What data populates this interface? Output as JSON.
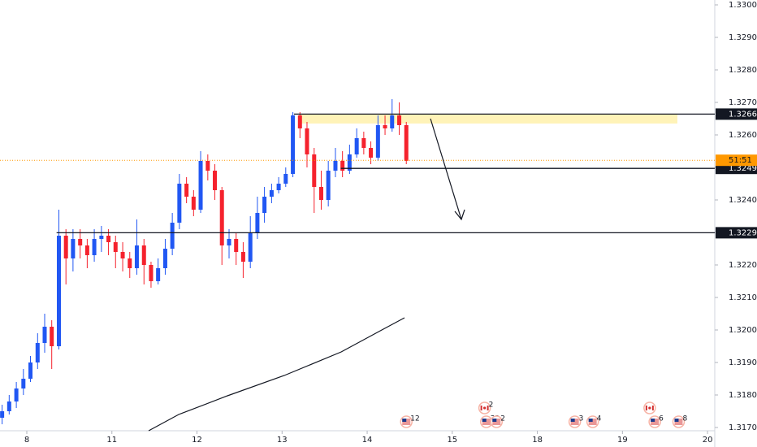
{
  "chart_data": {
    "type": "candlestick",
    "up_color": "#2157f3",
    "down_color": "#f5222d",
    "grid": false,
    "xlim": [
      -0.315,
      8.085
    ],
    "xticks": [
      {
        "value": 0,
        "label": "8"
      },
      {
        "value": 1,
        "label": "11"
      },
      {
        "value": 2,
        "label": "12"
      },
      {
        "value": 3,
        "label": "13"
      },
      {
        "value": 4,
        "label": "14"
      },
      {
        "value": 5,
        "label": "15"
      },
      {
        "value": 6,
        "label": "18"
      },
      {
        "value": 7,
        "label": "19"
      },
      {
        "value": 8,
        "label": "20"
      }
    ],
    "ylim": [
      1.3169,
      1.33015
    ],
    "yticks": [
      {
        "value": 1.33,
        "label": "1.33000"
      },
      {
        "value": 1.329,
        "label": "1.32900"
      },
      {
        "value": 1.328,
        "label": "1.32800"
      },
      {
        "value": 1.327,
        "label": "1.32700"
      },
      {
        "value": 1.326,
        "label": "1.32600"
      },
      {
        "value": 1.325,
        "label": "1.32500"
      },
      {
        "value": 1.324,
        "label": "1.32400"
      },
      {
        "value": 1.323,
        "label": "1.32300"
      },
      {
        "value": 1.322,
        "label": "1.32200"
      },
      {
        "value": 1.321,
        "label": "1.32100"
      },
      {
        "value": 1.32,
        "label": "1.32000"
      },
      {
        "value": 1.319,
        "label": "1.31900"
      },
      {
        "value": 1.318,
        "label": "1.31800"
      },
      {
        "value": 1.317,
        "label": "1.31700"
      }
    ],
    "x": [
      -0.29,
      -0.207,
      -0.123,
      -0.04,
      0.043,
      0.127,
      0.21,
      0.293,
      0.377,
      0.46,
      0.543,
      0.627,
      0.71,
      0.793,
      0.877,
      0.96,
      1.043,
      1.127,
      1.21,
      1.293,
      1.377,
      1.46,
      1.543,
      1.627,
      1.71,
      1.793,
      1.877,
      1.96,
      2.043,
      2.127,
      2.21,
      2.293,
      2.377,
      2.46,
      2.543,
      2.627,
      2.71,
      2.793,
      2.877,
      2.96,
      3.043,
      3.127,
      3.21,
      3.293,
      3.377,
      3.46,
      3.543,
      3.627,
      3.71,
      3.793,
      3.877,
      3.96,
      4.043,
      4.127,
      4.21,
      4.293,
      4.377,
      4.46
    ],
    "open": [
      1.3173,
      1.3175,
      1.3178,
      1.3182,
      1.3185,
      1.319,
      1.3196,
      1.3201,
      1.3195,
      1.3229,
      1.3222,
      1.3228,
      1.3226,
      1.3223,
      1.3228,
      1.3229,
      1.3227,
      1.3224,
      1.3222,
      1.3219,
      1.3226,
      1.322,
      1.3215,
      1.3219,
      1.3225,
      1.3233,
      1.3245,
      1.3241,
      1.3237,
      1.3252,
      1.3249,
      1.3243,
      1.3226,
      1.3228,
      1.3224,
      1.3221,
      1.323,
      1.3236,
      1.3241,
      1.3243,
      1.3245,
      1.3248,
      1.3266,
      1.3262,
      1.3254,
      1.3244,
      1.324,
      1.3249,
      1.3252,
      1.3249,
      1.3254,
      1.3259,
      1.3256,
      1.3253,
      1.3263,
      1.3262,
      1.3266,
      1.3263
    ],
    "high": [
      1.3177,
      1.318,
      1.3184,
      1.3188,
      1.3192,
      1.3199,
      1.3205,
      1.3203,
      1.3237,
      1.3231,
      1.3231,
      1.3231,
      1.3228,
      1.3231,
      1.3232,
      1.3231,
      1.3229,
      1.3227,
      1.3224,
      1.3234,
      1.3228,
      1.3221,
      1.3222,
      1.3228,
      1.3236,
      1.3248,
      1.3247,
      1.3243,
      1.3255,
      1.3254,
      1.3251,
      1.3244,
      1.3231,
      1.323,
      1.3227,
      1.3235,
      1.3241,
      1.3244,
      1.3245,
      1.3247,
      1.325,
      1.3267,
      1.3267,
      1.3264,
      1.3256,
      1.3249,
      1.3252,
      1.3256,
      1.3255,
      1.3257,
      1.3262,
      1.3261,
      1.3258,
      1.3266,
      1.3266,
      1.3271,
      1.327,
      1.3264
    ],
    "low": [
      1.3171,
      1.3174,
      1.3176,
      1.318,
      1.3184,
      1.3188,
      1.3193,
      1.3188,
      1.3194,
      1.3214,
      1.3218,
      1.3222,
      1.3219,
      1.3221,
      1.3224,
      1.3223,
      1.3219,
      1.3218,
      1.3216,
      1.3217,
      1.3214,
      1.3213,
      1.3214,
      1.3217,
      1.3223,
      1.3231,
      1.3239,
      1.3235,
      1.3236,
      1.3246,
      1.324,
      1.322,
      1.3222,
      1.322,
      1.3216,
      1.3219,
      1.3228,
      1.3233,
      1.3239,
      1.3242,
      1.3244,
      1.3247,
      1.3259,
      1.325,
      1.3236,
      1.3237,
      1.3238,
      1.3247,
      1.3247,
      1.3248,
      1.3253,
      1.3254,
      1.3251,
      1.3252,
      1.326,
      1.3261,
      1.326,
      1.3251
    ],
    "close": [
      1.3175,
      1.3178,
      1.3182,
      1.3185,
      1.319,
      1.3196,
      1.3201,
      1.3195,
      1.3229,
      1.3222,
      1.3228,
      1.3226,
      1.3223,
      1.3228,
      1.3229,
      1.3227,
      1.3224,
      1.3222,
      1.3219,
      1.3226,
      1.322,
      1.3215,
      1.3219,
      1.3225,
      1.3233,
      1.3245,
      1.3241,
      1.3237,
      1.3252,
      1.3249,
      1.3243,
      1.3226,
      1.3228,
      1.3224,
      1.3221,
      1.323,
      1.3236,
      1.3241,
      1.3243,
      1.3245,
      1.3248,
      1.3266,
      1.3262,
      1.3254,
      1.3244,
      1.324,
      1.3249,
      1.3252,
      1.3249,
      1.3254,
      1.3259,
      1.3256,
      1.3253,
      1.3263,
      1.3262,
      1.3266,
      1.3263,
      1.3252
    ],
    "moving_average": {
      "color": "#131722",
      "x": [
        1.432,
        1.785,
        2.358,
        3.026,
        3.695,
        4.172,
        4.439
      ],
      "values": [
        1.3169,
        1.3174,
        1.317975,
        1.3186,
        1.319325,
        1.32,
        1.320375
      ]
    },
    "levels": [
      {
        "value": 1.32664,
        "x": 3.14
      },
      {
        "value": 1.32497,
        "x": 3.69
      },
      {
        "value": 1.32299,
        "x": 0.35
      }
    ],
    "current_price": {
      "value": 1.32522,
      "countdown": "51:51",
      "color": "#ff9800"
    },
    "events": [
      {
        "x": 4.46,
        "flag": "us",
        "label": "12"
      },
      {
        "x": 5.38,
        "flag": "ca",
        "label": "2",
        "row": "upper"
      },
      {
        "x": 5.4,
        "flag": "us",
        "label": "33"
      },
      {
        "x": 5.52,
        "flag": "us",
        "label": "2"
      },
      {
        "x": 6.44,
        "flag": "us",
        "label": "3"
      },
      {
        "x": 6.65,
        "flag": "us",
        "label": "4"
      },
      {
        "x": 7.32,
        "flag": "ca",
        "row": "upper"
      },
      {
        "x": 7.38,
        "flag": "us",
        "label": "6"
      },
      {
        "x": 7.66,
        "flag": "us",
        "label": "8"
      }
    ]
  }
}
